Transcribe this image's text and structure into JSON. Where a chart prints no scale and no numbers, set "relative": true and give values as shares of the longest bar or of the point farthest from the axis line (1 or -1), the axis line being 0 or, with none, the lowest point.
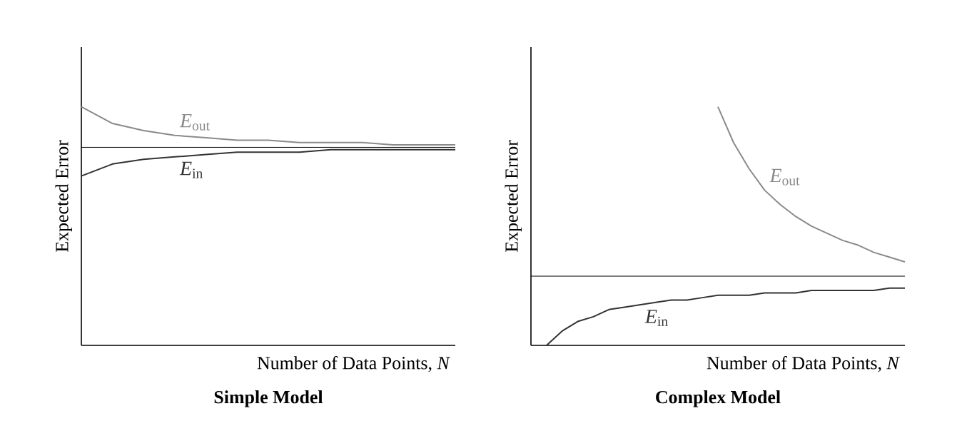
{
  "chart_data": [
    {
      "type": "line",
      "title": "Simple Model",
      "xlabel": "Number of Data Points, *N*",
      "ylabel": "Expected Error",
      "relative": true,
      "categories": [
        null,
        null,
        null,
        null,
        null,
        null,
        null,
        null,
        null,
        null,
        null,
        null,
        null
      ],
      "series": [
        {
          "name": "*E*$_{out}$",
          "color": "#8a8a8a",
          "values": [
            1.0,
            0.93,
            0.9,
            0.88,
            0.87,
            0.86,
            0.86,
            0.85,
            0.85,
            0.85,
            0.84,
            0.84,
            0.84
          ]
        },
        {
          "name": "*E*$_{in}$",
          "color": "#333333",
          "values": [
            0.71,
            0.76,
            0.78,
            0.79,
            0.8,
            0.81,
            0.81,
            0.81,
            0.82,
            0.82,
            0.82,
            0.82,
            0.82
          ]
        }
      ],
      "ref_lines": [
        {
          "axis": "y",
          "value": 0.83,
          "color": "#000000"
        }
      ],
      "marker": "none",
      "line_style": "solid",
      "legend": false
    },
    {
      "type": "line",
      "title": "Complex Model",
      "xlabel": "Number of Data Points, *N*",
      "ylabel": "Expected Error",
      "relative": true,
      "categories": [
        null,
        null,
        null,
        null,
        null,
        null,
        null,
        null,
        null,
        null,
        null,
        null,
        null,
        null,
        null,
        null,
        null,
        null,
        null,
        null,
        null,
        null,
        null,
        null,
        null
      ],
      "series": [
        {
          "name": "*E*$_{out}$",
          "color": "#8a8a8a",
          "values": [
            null,
            null,
            null,
            null,
            null,
            null,
            null,
            null,
            null,
            null,
            null,
            null,
            1.0,
            0.85,
            0.74,
            0.65,
            0.59,
            0.54,
            0.5,
            0.47,
            0.44,
            0.42,
            0.39,
            0.37,
            0.35
          ]
        },
        {
          "name": "*E*$_{in}$",
          "color": "#333333",
          "values": [
            null,
            0.0,
            0.06,
            0.1,
            0.12,
            0.15,
            0.16,
            0.17,
            0.18,
            0.19,
            0.19,
            0.2,
            0.21,
            0.21,
            0.21,
            0.22,
            0.22,
            0.22,
            0.23,
            0.23,
            0.23,
            0.23,
            0.23,
            0.24,
            0.24
          ]
        }
      ],
      "ref_lines": [
        {
          "axis": "y",
          "value": 0.29,
          "color": "#000000"
        }
      ],
      "marker": "none",
      "line_style": "solid",
      "legend": false
    }
  ]
}
